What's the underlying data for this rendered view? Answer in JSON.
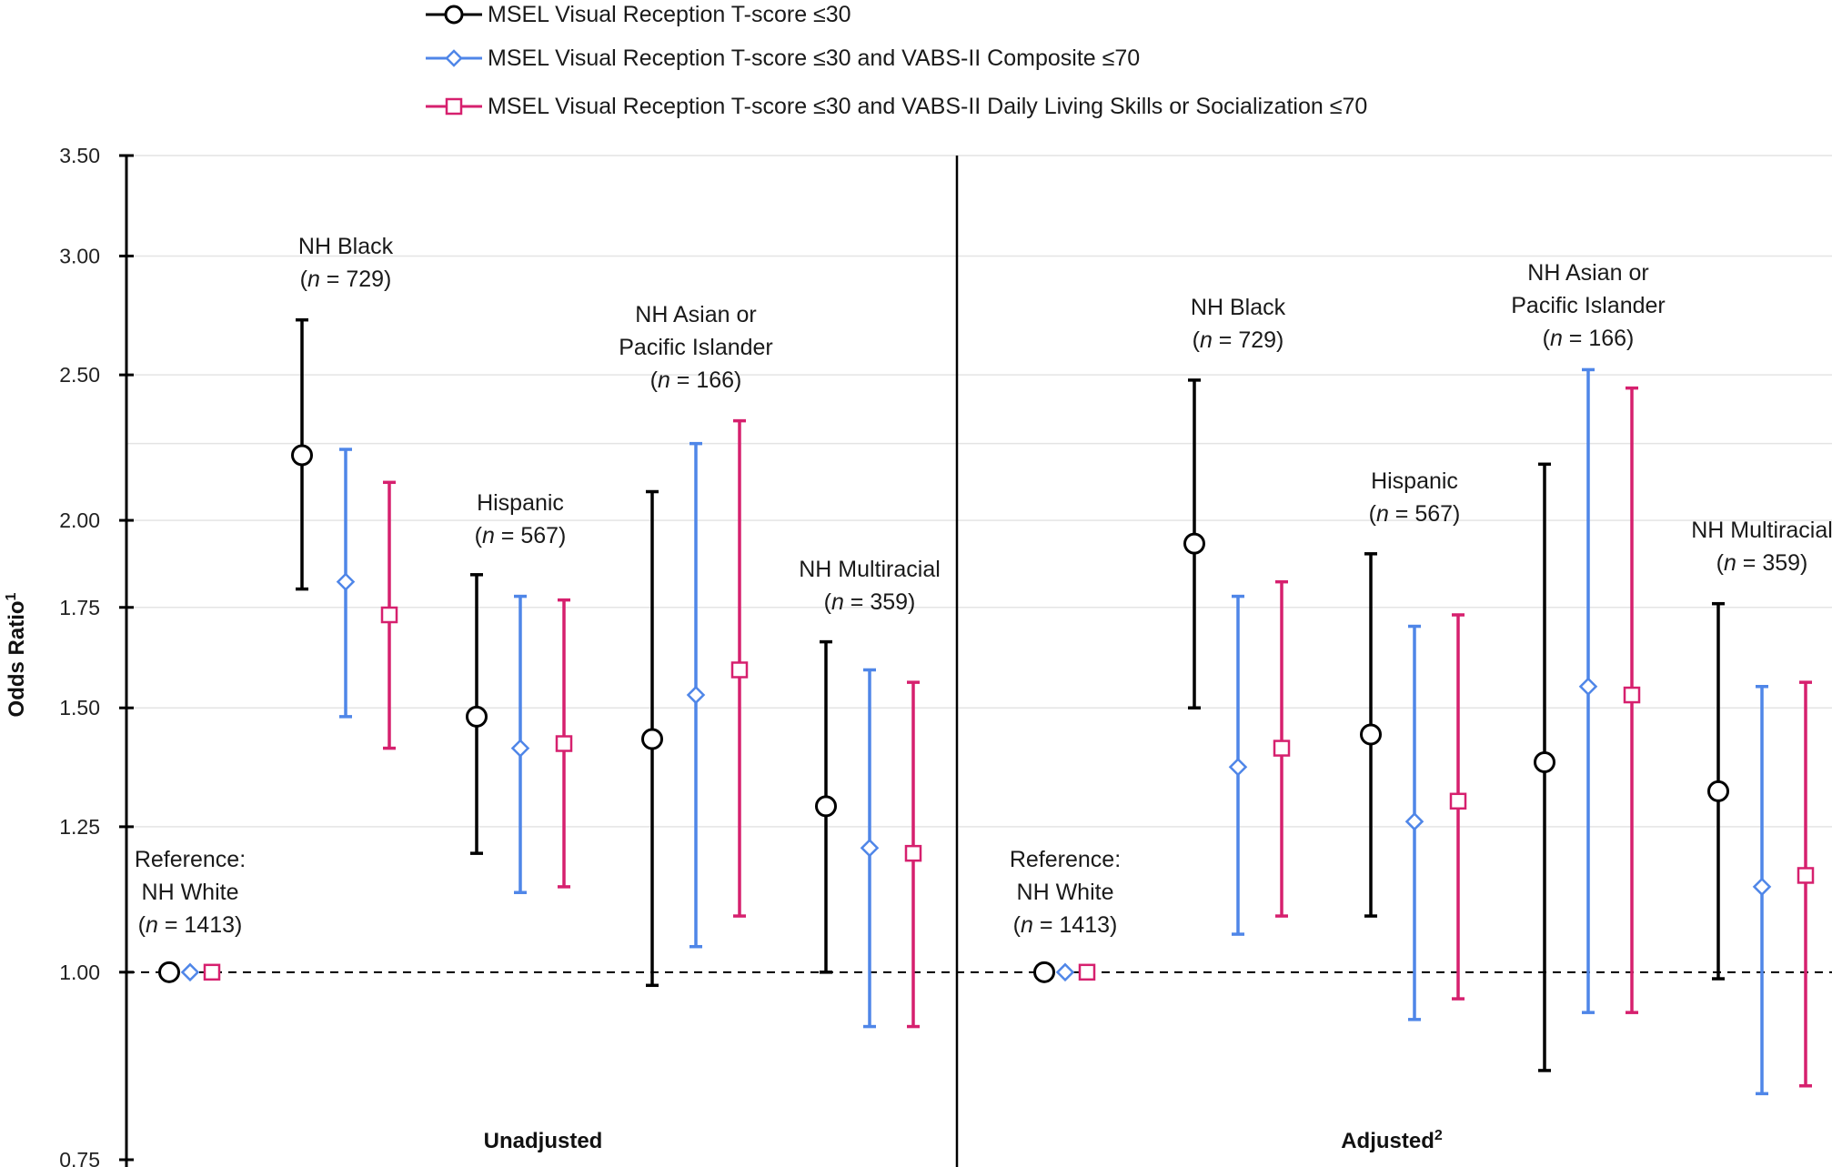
{
  "chart_data": {
    "type": "scatter",
    "subtype": "odds-ratio forest plot with 95% CI error bars",
    "ylabel": "Odds Ratio",
    "ylabel_superscript": "1",
    "y_scale": "log",
    "ylim": [
      0.75,
      3.5
    ],
    "y_ticks": [
      "0.75",
      "1.00",
      "1.25",
      "1.50",
      "1.75",
      "2.00",
      "2.50",
      "3.00",
      "3.50"
    ],
    "gridlines": true,
    "reference_line": 1.0,
    "legend_position": "top-center",
    "series": [
      {
        "key": "vr",
        "name": "MSEL Visual Reception T-score ≤30",
        "marker": "circle",
        "color": "#000000"
      },
      {
        "key": "vabs",
        "name": "MSEL Visual Reception T-score ≤30 and VABS-II Composite ≤70",
        "marker": "diamond",
        "color": "#4f86e8"
      },
      {
        "key": "dls",
        "name": "MSEL Visual Reception T-score ≤30 and VABS-II Daily Living Skills or Socialization ≤70",
        "marker": "square",
        "color": "#d6206e"
      }
    ],
    "panels": [
      {
        "label": "Unadjusted",
        "label_superscript": "",
        "groups": [
          {
            "name": "Reference:\nNH White\n(n = 1413)",
            "vr": {
              "or": 1.0
            },
            "vabs": {
              "or": 1.0
            },
            "dls": {
              "or": 1.0
            }
          },
          {
            "name": "NH Black\n(n = 729)",
            "vr": {
              "or": 2.21,
              "lo": 1.8,
              "hi": 2.72
            },
            "vabs": {
              "or": 1.82,
              "lo": 1.48,
              "hi": 2.23
            },
            "dls": {
              "or": 1.73,
              "lo": 1.41,
              "hi": 2.12
            }
          },
          {
            "name": "Hispanic\n(n = 567)",
            "vr": {
              "or": 1.48,
              "lo": 1.2,
              "hi": 1.84
            },
            "vabs": {
              "or": 1.41,
              "lo": 1.13,
              "hi": 1.78
            },
            "dls": {
              "or": 1.42,
              "lo": 1.14,
              "hi": 1.77
            }
          },
          {
            "name": "NH Asian or\nPacific Islander\n(n = 166)",
            "vr": {
              "or": 1.43,
              "lo": 0.98,
              "hi": 2.09
            },
            "vabs": {
              "or": 1.53,
              "lo": 1.04,
              "hi": 2.25
            },
            "dls": {
              "or": 1.59,
              "lo": 1.09,
              "hi": 2.33
            }
          },
          {
            "name": "NH Multiracial\n(n = 359)",
            "vr": {
              "or": 1.29,
              "lo": 1.0,
              "hi": 1.66
            },
            "vabs": {
              "or": 1.21,
              "lo": 0.92,
              "hi": 1.59
            },
            "dls": {
              "or": 1.2,
              "lo": 0.92,
              "hi": 1.56
            }
          }
        ]
      },
      {
        "label": "Adjusted",
        "label_superscript": "2",
        "groups": [
          {
            "name": "Reference:\nNH White\n(n = 1413)",
            "vr": {
              "or": 1.0
            },
            "vabs": {
              "or": 1.0
            },
            "dls": {
              "or": 1.0
            }
          },
          {
            "name": "NH Black\n(n = 729)",
            "vr": {
              "or": 1.93,
              "lo": 1.5,
              "hi": 2.48
            },
            "vabs": {
              "or": 1.37,
              "lo": 1.06,
              "hi": 1.78
            },
            "dls": {
              "or": 1.41,
              "lo": 1.09,
              "hi": 1.82
            }
          },
          {
            "name": "Hispanic\n(n = 567)",
            "vr": {
              "or": 1.44,
              "lo": 1.09,
              "hi": 1.9
            },
            "vabs": {
              "or": 1.26,
              "lo": 0.93,
              "hi": 1.7
            },
            "dls": {
              "or": 1.3,
              "lo": 0.96,
              "hi": 1.73
            }
          },
          {
            "name": "NH Asian or\nPacific Islander\n(n = 166)",
            "vr": {
              "or": 1.38,
              "lo": 0.86,
              "hi": 2.18
            },
            "vabs": {
              "or": 1.55,
              "lo": 0.94,
              "hi": 2.52
            },
            "dls": {
              "or": 1.53,
              "lo": 0.94,
              "hi": 2.45
            }
          },
          {
            "name": "NH Multiracial\n(n = 359)",
            "vr": {
              "or": 1.32,
              "lo": 0.99,
              "hi": 1.76
            },
            "vabs": {
              "or": 1.14,
              "lo": 0.83,
              "hi": 1.55
            },
            "dls": {
              "or": 1.16,
              "lo": 0.84,
              "hi": 1.56
            }
          }
        ]
      }
    ]
  }
}
